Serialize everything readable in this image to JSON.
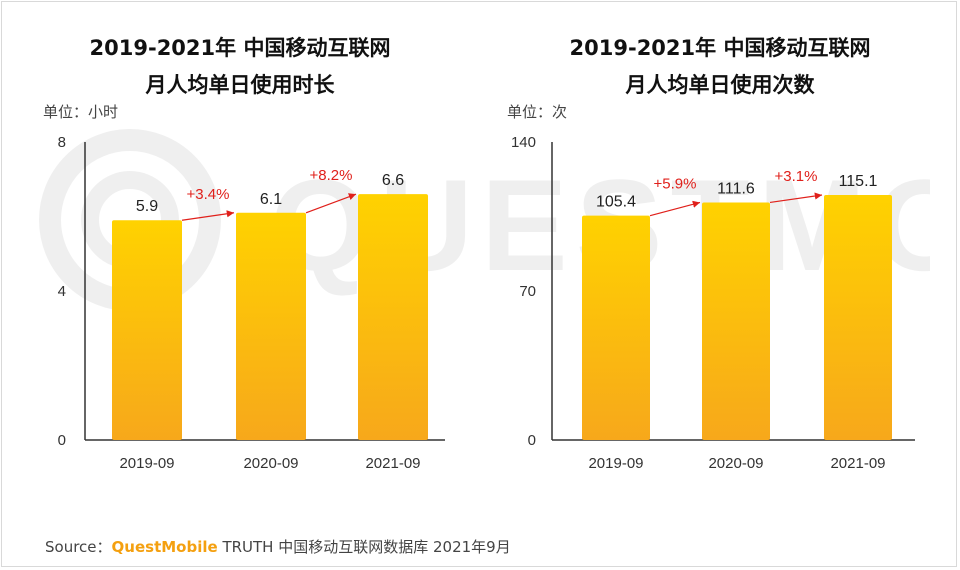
{
  "chart_data": [
    {
      "type": "bar",
      "title_line1": "2019-2021年 中国移动互联网",
      "title_line2": "月人均单日使用时长",
      "unit_label": "单位：小时",
      "categories": [
        "2019-09",
        "2020-09",
        "2021-09"
      ],
      "values": [
        5.9,
        6.1,
        6.6
      ],
      "value_labels": [
        "5.9",
        "6.1",
        "6.6"
      ],
      "growth_labels": [
        "+3.4%",
        "+8.2%"
      ],
      "ylim": [
        0,
        8
      ],
      "yticks": [
        "0",
        "4",
        "8"
      ],
      "ytick_values": [
        0,
        4,
        8
      ]
    },
    {
      "type": "bar",
      "title_line1": "2019-2021年 中国移动互联网",
      "title_line2": "月人均单日使用次数",
      "unit_label": "单位：次",
      "categories": [
        "2019-09",
        "2020-09",
        "2021-09"
      ],
      "values": [
        105.4,
        111.6,
        115.1
      ],
      "value_labels": [
        "105.4",
        "111.6",
        "115.1"
      ],
      "growth_labels": [
        "+5.9%",
        "+3.1%"
      ],
      "ylim": [
        0,
        140
      ],
      "yticks": [
        "0",
        "70",
        "140"
      ],
      "ytick_values": [
        0,
        70,
        140
      ]
    }
  ],
  "colors": {
    "bar_top": "#FFD200",
    "bar_bottom": "#F7A81B",
    "growth": "#E0201B",
    "axis": "#333333"
  },
  "footer": {
    "source_prefix": "Source：",
    "brand": "QuestMobile",
    "source_rest": " TRUTH 中国移动互联网数据库 2021年9月"
  }
}
